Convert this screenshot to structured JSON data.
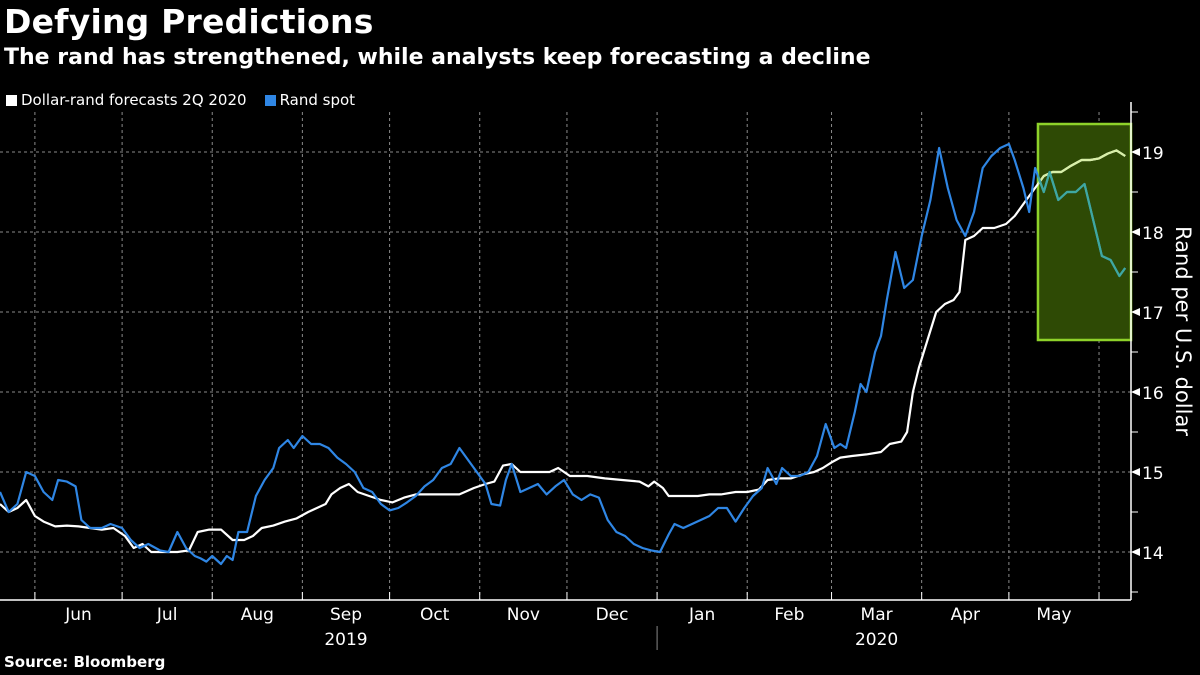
{
  "title": "Defying Predictions",
  "subtitle": "The rand has strengthened, while analysts keep forecasting a decline",
  "source": "Source: Bloomberg",
  "colors": {
    "background": "#000000",
    "forecast": "#ffffff",
    "spot": "#2f86e4",
    "highlight_fill": "#2e4a05",
    "highlight_stroke": "#8ed22a",
    "forecast_in_highlight": "#d8f0a8",
    "spot_in_highlight": "#3fa8a0",
    "grid": "#8a8a8a"
  },
  "legend": [
    {
      "label": "Dollar-rand forecasts 2Q 2020",
      "color": "#ffffff"
    },
    {
      "label": "Rand spot",
      "color": "#2f86e4"
    }
  ],
  "chart_data": {
    "type": "line",
    "title": "Defying Predictions",
    "subtitle": "The rand has strengthened, while analysts keep forecasting a decline",
    "xlabel": "",
    "ylabel": "Rand per U.S. dollar",
    "y_axis_side": "right",
    "ylim": [
      13.4,
      19.5
    ],
    "yticks": [
      14,
      15,
      16,
      17,
      18,
      19
    ],
    "x_range": [
      "2019-05-20",
      "2020-06-12"
    ],
    "month_ticks": [
      {
        "label": "Jun",
        "date": "2019-06-01"
      },
      {
        "label": "Jul",
        "date": "2019-07-01"
      },
      {
        "label": "Aug",
        "date": "2019-08-01"
      },
      {
        "label": "Sep",
        "date": "2019-09-01"
      },
      {
        "label": "Oct",
        "date": "2019-10-01"
      },
      {
        "label": "Nov",
        "date": "2019-11-01"
      },
      {
        "label": "Dec",
        "date": "2019-12-01"
      },
      {
        "label": "Jan",
        "date": "2020-01-01"
      },
      {
        "label": "Feb",
        "date": "2020-02-01"
      },
      {
        "label": "Mar",
        "date": "2020-03-01"
      },
      {
        "label": "Apr",
        "date": "2020-04-01"
      },
      {
        "label": "May",
        "date": "2020-05-01"
      }
    ],
    "year_labels": [
      {
        "label": "2019",
        "center_month": "Sep"
      },
      {
        "label": "2020",
        "center_month": "Mar"
      }
    ],
    "grid": true,
    "legend_position": "top-left",
    "highlight_box": {
      "x_start": "2020-05-11",
      "x_end": "2020-06-12",
      "y_low": 16.65,
      "y_high": 19.35
    },
    "series": [
      {
        "name": "Dollar-rand forecasts 2Q 2020",
        "color": "#ffffff",
        "points": [
          [
            "2019-05-20",
            14.6
          ],
          [
            "2019-05-23",
            14.5
          ],
          [
            "2019-05-26",
            14.55
          ],
          [
            "2019-05-29",
            14.65
          ],
          [
            "2019-06-01",
            14.45
          ],
          [
            "2019-06-04",
            14.38
          ],
          [
            "2019-06-08",
            14.32
          ],
          [
            "2019-06-12",
            14.33
          ],
          [
            "2019-06-16",
            14.32
          ],
          [
            "2019-06-20",
            14.3
          ],
          [
            "2019-06-24",
            14.28
          ],
          [
            "2019-06-28",
            14.3
          ],
          [
            "2019-07-02",
            14.2
          ],
          [
            "2019-07-05",
            14.05
          ],
          [
            "2019-07-08",
            14.1
          ],
          [
            "2019-07-11",
            14.0
          ],
          [
            "2019-07-15",
            14.0
          ],
          [
            "2019-07-20",
            14.0
          ],
          [
            "2019-07-24",
            14.02
          ],
          [
            "2019-07-27",
            14.25
          ],
          [
            "2019-07-31",
            14.28
          ],
          [
            "2019-08-04",
            14.28
          ],
          [
            "2019-08-08",
            14.15
          ],
          [
            "2019-08-12",
            14.15
          ],
          [
            "2019-08-15",
            14.2
          ],
          [
            "2019-08-18",
            14.3
          ],
          [
            "2019-08-22",
            14.33
          ],
          [
            "2019-08-26",
            14.38
          ],
          [
            "2019-08-30",
            14.42
          ],
          [
            "2019-09-03",
            14.5
          ],
          [
            "2019-09-06",
            14.55
          ],
          [
            "2019-09-09",
            14.6
          ],
          [
            "2019-09-11",
            14.72
          ],
          [
            "2019-09-14",
            14.8
          ],
          [
            "2019-09-17",
            14.85
          ],
          [
            "2019-09-20",
            14.75
          ],
          [
            "2019-09-24",
            14.7
          ],
          [
            "2019-09-28",
            14.65
          ],
          [
            "2019-10-02",
            14.62
          ],
          [
            "2019-10-06",
            14.68
          ],
          [
            "2019-10-10",
            14.72
          ],
          [
            "2019-10-15",
            14.72
          ],
          [
            "2019-10-20",
            14.72
          ],
          [
            "2019-10-25",
            14.72
          ],
          [
            "2019-10-30",
            14.8
          ],
          [
            "2019-11-03",
            14.85
          ],
          [
            "2019-11-06",
            14.88
          ],
          [
            "2019-11-09",
            15.08
          ],
          [
            "2019-11-12",
            15.1
          ],
          [
            "2019-11-15",
            15.0
          ],
          [
            "2019-11-20",
            15.0
          ],
          [
            "2019-11-25",
            15.0
          ],
          [
            "2019-11-28",
            15.05
          ],
          [
            "2019-12-02",
            14.95
          ],
          [
            "2019-12-08",
            14.95
          ],
          [
            "2019-12-14",
            14.92
          ],
          [
            "2019-12-20",
            14.9
          ],
          [
            "2019-12-26",
            14.88
          ],
          [
            "2019-12-29",
            14.82
          ],
          [
            "2019-12-31",
            14.88
          ],
          [
            "2020-01-03",
            14.8
          ],
          [
            "2020-01-05",
            14.7
          ],
          [
            "2020-01-10",
            14.7
          ],
          [
            "2020-01-15",
            14.7
          ],
          [
            "2020-01-19",
            14.72
          ],
          [
            "2020-01-23",
            14.72
          ],
          [
            "2020-01-28",
            14.75
          ],
          [
            "2020-02-01",
            14.75
          ],
          [
            "2020-02-05",
            14.78
          ],
          [
            "2020-02-08",
            14.9
          ],
          [
            "2020-02-12",
            14.92
          ],
          [
            "2020-02-16",
            14.92
          ],
          [
            "2020-02-20",
            14.97
          ],
          [
            "2020-02-24",
            15.0
          ],
          [
            "2020-02-27",
            15.05
          ],
          [
            "2020-03-01",
            15.12
          ],
          [
            "2020-03-04",
            15.18
          ],
          [
            "2020-03-08",
            15.2
          ],
          [
            "2020-03-13",
            15.22
          ],
          [
            "2020-03-18",
            15.25
          ],
          [
            "2020-03-21",
            15.35
          ],
          [
            "2020-03-25",
            15.38
          ],
          [
            "2020-03-27",
            15.5
          ],
          [
            "2020-03-29",
            16.0
          ],
          [
            "2020-03-31",
            16.3
          ],
          [
            "2020-04-03",
            16.65
          ],
          [
            "2020-04-06",
            17.0
          ],
          [
            "2020-04-09",
            17.1
          ],
          [
            "2020-04-12",
            17.15
          ],
          [
            "2020-04-14",
            17.25
          ],
          [
            "2020-04-16",
            17.9
          ],
          [
            "2020-04-19",
            17.95
          ],
          [
            "2020-04-22",
            18.05
          ],
          [
            "2020-04-26",
            18.05
          ],
          [
            "2020-04-30",
            18.1
          ],
          [
            "2020-05-03",
            18.2
          ],
          [
            "2020-05-06",
            18.35
          ],
          [
            "2020-05-08",
            18.45
          ],
          [
            "2020-05-10",
            18.55
          ],
          [
            "2020-05-13",
            18.7
          ],
          [
            "2020-05-16",
            18.75
          ],
          [
            "2020-05-19",
            18.75
          ],
          [
            "2020-05-22",
            18.82
          ],
          [
            "2020-05-26",
            18.9
          ],
          [
            "2020-05-29",
            18.9
          ],
          [
            "2020-06-01",
            18.92
          ],
          [
            "2020-06-04",
            18.98
          ],
          [
            "2020-06-07",
            19.02
          ],
          [
            "2020-06-10",
            18.95
          ]
        ]
      },
      {
        "name": "Rand spot",
        "color": "#2f86e4",
        "points": [
          [
            "2019-05-20",
            14.75
          ],
          [
            "2019-05-23",
            14.5
          ],
          [
            "2019-05-26",
            14.6
          ],
          [
            "2019-05-29",
            15.0
          ],
          [
            "2019-06-01",
            14.95
          ],
          [
            "2019-06-04",
            14.75
          ],
          [
            "2019-06-07",
            14.65
          ],
          [
            "2019-06-09",
            14.9
          ],
          [
            "2019-06-12",
            14.88
          ],
          [
            "2019-06-15",
            14.82
          ],
          [
            "2019-06-17",
            14.4
          ],
          [
            "2019-06-20",
            14.3
          ],
          [
            "2019-06-24",
            14.3
          ],
          [
            "2019-06-27",
            14.35
          ],
          [
            "2019-07-01",
            14.3
          ],
          [
            "2019-07-04",
            14.15
          ],
          [
            "2019-07-07",
            14.05
          ],
          [
            "2019-07-10",
            14.1
          ],
          [
            "2019-07-14",
            14.02
          ],
          [
            "2019-07-17",
            14.0
          ],
          [
            "2019-07-20",
            14.25
          ],
          [
            "2019-07-23",
            14.05
          ],
          [
            "2019-07-26",
            13.95
          ],
          [
            "2019-07-28",
            13.92
          ],
          [
            "2019-07-30",
            13.88
          ],
          [
            "2019-08-01",
            13.95
          ],
          [
            "2019-08-04",
            13.85
          ],
          [
            "2019-08-06",
            13.95
          ],
          [
            "2019-08-08",
            13.9
          ],
          [
            "2019-08-10",
            14.25
          ],
          [
            "2019-08-13",
            14.25
          ],
          [
            "2019-08-16",
            14.7
          ],
          [
            "2019-08-19",
            14.9
          ],
          [
            "2019-08-22",
            15.05
          ],
          [
            "2019-08-24",
            15.3
          ],
          [
            "2019-08-27",
            15.4
          ],
          [
            "2019-08-29",
            15.3
          ],
          [
            "2019-09-01",
            15.45
          ],
          [
            "2019-09-04",
            15.35
          ],
          [
            "2019-09-07",
            15.35
          ],
          [
            "2019-09-10",
            15.3
          ],
          [
            "2019-09-13",
            15.18
          ],
          [
            "2019-09-16",
            15.1
          ],
          [
            "2019-09-19",
            15.0
          ],
          [
            "2019-09-22",
            14.8
          ],
          [
            "2019-09-25",
            14.75
          ],
          [
            "2019-09-28",
            14.6
          ],
          [
            "2019-10-01",
            14.52
          ],
          [
            "2019-10-04",
            14.55
          ],
          [
            "2019-10-07",
            14.62
          ],
          [
            "2019-10-10",
            14.7
          ],
          [
            "2019-10-13",
            14.82
          ],
          [
            "2019-10-16",
            14.9
          ],
          [
            "2019-10-19",
            15.05
          ],
          [
            "2019-10-22",
            15.1
          ],
          [
            "2019-10-25",
            15.3
          ],
          [
            "2019-10-28",
            15.15
          ],
          [
            "2019-10-31",
            15.0
          ],
          [
            "2019-11-03",
            14.85
          ],
          [
            "2019-11-05",
            14.6
          ],
          [
            "2019-11-08",
            14.58
          ],
          [
            "2019-11-10",
            14.9
          ],
          [
            "2019-11-12",
            15.1
          ],
          [
            "2019-11-15",
            14.75
          ],
          [
            "2019-11-18",
            14.8
          ],
          [
            "2019-11-21",
            14.85
          ],
          [
            "2019-11-24",
            14.72
          ],
          [
            "2019-11-27",
            14.82
          ],
          [
            "2019-11-30",
            14.9
          ],
          [
            "2019-12-03",
            14.72
          ],
          [
            "2019-12-06",
            14.65
          ],
          [
            "2019-12-09",
            14.72
          ],
          [
            "2019-12-12",
            14.68
          ],
          [
            "2019-12-15",
            14.4
          ],
          [
            "2019-12-18",
            14.25
          ],
          [
            "2019-12-21",
            14.2
          ],
          [
            "2019-12-24",
            14.1
          ],
          [
            "2019-12-27",
            14.05
          ],
          [
            "2019-12-30",
            14.02
          ],
          [
            "2020-01-02",
            14.0
          ],
          [
            "2020-01-05",
            14.22
          ],
          [
            "2020-01-07",
            14.35
          ],
          [
            "2020-01-10",
            14.3
          ],
          [
            "2020-01-13",
            14.35
          ],
          [
            "2020-01-16",
            14.4
          ],
          [
            "2020-01-19",
            14.45
          ],
          [
            "2020-01-22",
            14.55
          ],
          [
            "2020-01-25",
            14.55
          ],
          [
            "2020-01-28",
            14.38
          ],
          [
            "2020-01-31",
            14.55
          ],
          [
            "2020-02-03",
            14.7
          ],
          [
            "2020-02-06",
            14.8
          ],
          [
            "2020-02-08",
            15.05
          ],
          [
            "2020-02-11",
            14.85
          ],
          [
            "2020-02-13",
            15.05
          ],
          [
            "2020-02-16",
            14.95
          ],
          [
            "2020-02-19",
            14.95
          ],
          [
            "2020-02-22",
            15.0
          ],
          [
            "2020-02-25",
            15.2
          ],
          [
            "2020-02-28",
            15.6
          ],
          [
            "2020-03-02",
            15.3
          ],
          [
            "2020-03-04",
            15.35
          ],
          [
            "2020-03-06",
            15.3
          ],
          [
            "2020-03-09",
            15.75
          ],
          [
            "2020-03-11",
            16.1
          ],
          [
            "2020-03-13",
            16.0
          ],
          [
            "2020-03-16",
            16.5
          ],
          [
            "2020-03-18",
            16.7
          ],
          [
            "2020-03-20",
            17.15
          ],
          [
            "2020-03-23",
            17.75
          ],
          [
            "2020-03-26",
            17.3
          ],
          [
            "2020-03-29",
            17.4
          ],
          [
            "2020-04-01",
            17.95
          ],
          [
            "2020-04-04",
            18.4
          ],
          [
            "2020-04-07",
            19.05
          ],
          [
            "2020-04-10",
            18.55
          ],
          [
            "2020-04-13",
            18.15
          ],
          [
            "2020-04-16",
            17.95
          ],
          [
            "2020-04-19",
            18.25
          ],
          [
            "2020-04-22",
            18.8
          ],
          [
            "2020-04-25",
            18.95
          ],
          [
            "2020-04-28",
            19.05
          ],
          [
            "2020-05-01",
            19.1
          ],
          [
            "2020-05-03",
            18.9
          ],
          [
            "2020-05-06",
            18.55
          ],
          [
            "2020-05-08",
            18.25
          ],
          [
            "2020-05-10",
            18.8
          ],
          [
            "2020-05-13",
            18.5
          ],
          [
            "2020-05-15",
            18.75
          ],
          [
            "2020-05-18",
            18.4
          ],
          [
            "2020-05-21",
            18.5
          ],
          [
            "2020-05-24",
            18.5
          ],
          [
            "2020-05-27",
            18.6
          ],
          [
            "2020-05-30",
            18.15
          ],
          [
            "2020-06-02",
            17.7
          ],
          [
            "2020-06-05",
            17.65
          ],
          [
            "2020-06-08",
            17.45
          ],
          [
            "2020-06-10",
            17.55
          ]
        ]
      }
    ]
  }
}
